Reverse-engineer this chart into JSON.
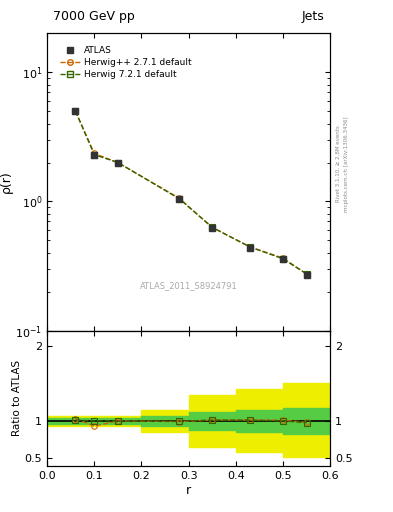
{
  "title_left": "7000 GeV pp",
  "title_right": "Jets",
  "ylabel_main": "ρ(r)",
  "ylabel_ratio": "Ratio to ATLAS",
  "xlabel": "r",
  "watermark": "ATLAS_2011_S8924791",
  "rivet_label": "Rivet 3.1.10, ≥ 2.8M events",
  "mcplots_label": "mcplots.cern.ch [arXiv:1306.3436]",
  "atlas_x": [
    0.06,
    0.1,
    0.15,
    0.28,
    0.35,
    0.43,
    0.5,
    0.55
  ],
  "atlas_y": [
    5.0,
    2.3,
    2.0,
    1.05,
    0.62,
    0.44,
    0.36,
    0.27
  ],
  "atlas_yerr": [
    0.12,
    0.06,
    0.05,
    0.03,
    0.015,
    0.012,
    0.01,
    0.008
  ],
  "herwig_x": [
    0.06,
    0.1,
    0.15,
    0.28,
    0.35,
    0.43,
    0.5,
    0.55
  ],
  "herwig_y": [
    5.0,
    2.35,
    2.0,
    1.06,
    0.63,
    0.445,
    0.365,
    0.275
  ],
  "herwig7_x": [
    0.06,
    0.1,
    0.15,
    0.28,
    0.35,
    0.43,
    0.5,
    0.55
  ],
  "herwig7_y": [
    5.0,
    2.3,
    2.0,
    1.05,
    0.63,
    0.445,
    0.36,
    0.275
  ],
  "ratio_herwig_x": [
    0.06,
    0.1,
    0.15,
    0.28,
    0.35,
    0.43,
    0.5,
    0.55
  ],
  "ratio_herwig_y": [
    1.03,
    0.93,
    1.0,
    0.99,
    1.01,
    1.01,
    1.01,
    0.98
  ],
  "ratio_herwig7_x": [
    0.06,
    0.1,
    0.15,
    0.28,
    0.35,
    0.43,
    0.5,
    0.55
  ],
  "ratio_herwig7_y": [
    1.01,
    1.0,
    1.0,
    0.995,
    1.01,
    1.01,
    1.0,
    0.975
  ],
  "band_x_edges": [
    0.0,
    0.1,
    0.2,
    0.3,
    0.4,
    0.5,
    0.6
  ],
  "band_yellow_lo": [
    0.93,
    0.93,
    0.85,
    0.65,
    0.58,
    0.52,
    0.52
  ],
  "band_yellow_hi": [
    1.07,
    1.07,
    1.15,
    1.35,
    1.42,
    1.5,
    1.5
  ],
  "band_green_lo": [
    0.96,
    0.96,
    0.93,
    0.88,
    0.85,
    0.83,
    0.83
  ],
  "band_green_hi": [
    1.04,
    1.04,
    1.07,
    1.12,
    1.15,
    1.17,
    1.17
  ],
  "color_atlas": "#333333",
  "color_herwig": "#cc6600",
  "color_herwig7": "#336600",
  "color_yellow": "#eeee00",
  "color_green": "#55cc44",
  "ylim_main": [
    0.1,
    20
  ],
  "ylim_ratio": [
    0.4,
    2.2
  ],
  "xlim": [
    0.0,
    0.6
  ]
}
